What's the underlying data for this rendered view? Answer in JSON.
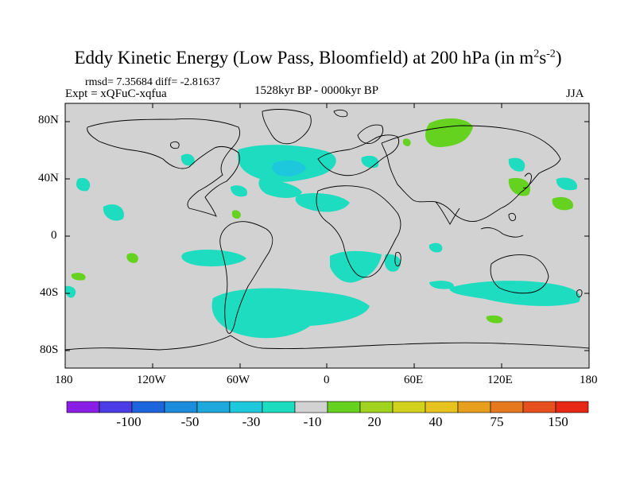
{
  "title": {
    "main": "Eddy Kinetic Energy (Low Pass, Bloomfield) at 200 hPa (in m",
    "sup1": "2",
    "mid": "s",
    "sup2": "-2",
    "close": ")"
  },
  "stats": {
    "rmsd_diff": "rmsd= 7.35684 diff= -2.81637",
    "expt": "Expt = xQFuC-xqfua",
    "period": "1528kyr BP - 0000kyr BP",
    "season": "JJA"
  },
  "axes": {
    "lat_labels": [
      "80N",
      "40N",
      "0",
      "40S",
      "80S"
    ],
    "lon_labels": [
      "180",
      "120W",
      "60W",
      "0",
      "60E",
      "120E",
      "180"
    ]
  },
  "colorbar": {
    "labels": [
      "-100",
      "-50",
      "-30",
      "-10",
      "20",
      "40",
      "75",
      "150"
    ],
    "colors": [
      "#8a1ee6",
      "#4b3ce6",
      "#1e64dc",
      "#1e8cdc",
      "#1ea8dc",
      "#1ec8dc",
      "#1edcc0",
      "#d2d2d2",
      "#64d21e",
      "#a0d21e",
      "#d2d21e",
      "#e6c31e",
      "#e6a01e",
      "#e6781e",
      "#e6501e",
      "#e62814"
    ]
  },
  "map": {
    "background": "#d2d2d2",
    "negative_color": "#1edcc0",
    "strong_negative_color": "#1ec8dc",
    "positive_color": "#64d21e"
  }
}
